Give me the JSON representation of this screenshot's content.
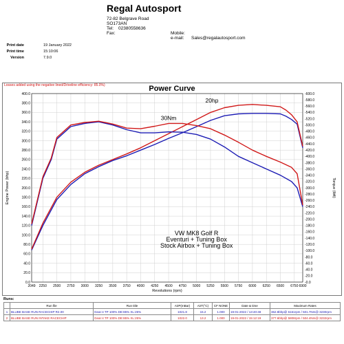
{
  "header": {
    "company": "Regal Autosport",
    "address1": "72-82 Belgrave Road",
    "address2": "SO173AN",
    "tel_label": "Tel:",
    "tel": "02380558636",
    "fax_label": "Fax:",
    "mobile_label": "Mobile:",
    "email_label": "e-mail:",
    "email": "Sales@regalautosport.com"
  },
  "print_info": {
    "date_label": "Print date",
    "date": "19 January 2022",
    "time_label": "Print time",
    "time": "15:10:06",
    "version_label": "Version",
    "version": "7.9.0"
  },
  "chart_note": "Losses added using the negative lined/Driveline efficiency: 85.0%)",
  "chart_data": {
    "type": "line",
    "title": "Power Curve",
    "xlabel": "Revolutions (rpm)",
    "ylabel": "Engine Power (bhp)",
    "y2label": "Torque (lbft)",
    "xlim": [
      2049,
      6900
    ],
    "ylim": [
      0,
      400
    ],
    "y2lim": [
      0,
      600
    ],
    "x_ticks": [
      "2049",
      "2250",
      "2500",
      "2750",
      "3000",
      "3250",
      "3500",
      "3750",
      "4000",
      "4250",
      "4500",
      "4750",
      "5000",
      "5250",
      "5500",
      "5750",
      "6000",
      "6250",
      "6500",
      "6750",
      "6900"
    ],
    "y_ticks": [
      "0.0",
      "20.0",
      "40.0",
      "60.0",
      "80.0",
      "100.0",
      "120.0",
      "140.0",
      "160.0",
      "180.0",
      "200.0",
      "220.0",
      "240.0",
      "260.0",
      "280.0",
      "300.0",
      "320.0",
      "340.0",
      "360.0",
      "380.0",
      "400.0"
    ],
    "y2_ticks": [
      "0.0",
      "20.0",
      "40.0",
      "60.0",
      "80.0",
      "100.0",
      "120.0",
      "140.0",
      "160.0",
      "180.0",
      "200.0",
      "220.0",
      "240.0",
      "260.0",
      "280.0",
      "300.0",
      "320.0",
      "340.0",
      "360.0",
      "380.0",
      "400.0",
      "420.0",
      "440.0",
      "460.0",
      "480.0",
      "500.0",
      "520.0",
      "540.0",
      "560.0",
      "580.0",
      "600.0"
    ],
    "grid": true,
    "series": [
      {
        "name": "BLUBE BASE RUN RACECHIP R2.00",
        "color": "#1c1cb4",
        "kind": "power",
        "x": [
          2049,
          2250,
          2500,
          2750,
          3000,
          3250,
          3500,
          3750,
          4000,
          4250,
          4500,
          4750,
          5000,
          5250,
          5500,
          5750,
          6000,
          6250,
          6500,
          6600,
          6700,
          6800,
          6900
        ],
        "y": [
          68,
          120,
          175,
          207,
          230,
          245,
          258,
          268,
          280,
          292,
          305,
          317,
          330,
          343,
          353,
          357,
          358,
          358,
          357,
          352,
          345,
          335,
          285
        ]
      },
      {
        "name": "BLUBE BASE RUN INTAKE RACECHIP",
        "color": "#d01818",
        "kind": "power",
        "x": [
          2049,
          2250,
          2500,
          2750,
          3000,
          3250,
          3500,
          3750,
          4000,
          4250,
          4500,
          4750,
          5000,
          5250,
          5500,
          5750,
          6000,
          6250,
          6500,
          6600,
          6700,
          6800,
          6900
        ],
        "y": [
          70,
          125,
          180,
          212,
          233,
          248,
          260,
          272,
          285,
          300,
          315,
          330,
          345,
          360,
          370,
          375,
          377,
          375,
          372,
          365,
          355,
          340,
          288
        ]
      },
      {
        "name": "BLUBE BASE RUN RACECHIP R2.00",
        "color": "#1c1cb4",
        "kind": "torque",
        "x": [
          2049,
          2250,
          2400,
          2500,
          2750,
          3000,
          3250,
          3500,
          3750,
          4000,
          4250,
          4500,
          4750,
          5000,
          5250,
          5500,
          5750,
          6000,
          6250,
          6500,
          6700,
          6800,
          6900
        ],
        "y": [
          180,
          330,
          390,
          455,
          495,
          505,
          510,
          500,
          485,
          475,
          475,
          478,
          477,
          470,
          455,
          430,
          400,
          380,
          360,
          340,
          320,
          300,
          240
        ]
      },
      {
        "name": "BLUBE BASE RUN INTAKE RACECHIP",
        "color": "#d01818",
        "kind": "torque",
        "x": [
          2049,
          2250,
          2400,
          2500,
          2750,
          3000,
          3250,
          3500,
          3750,
          4000,
          4250,
          4500,
          4750,
          5000,
          5250,
          5500,
          5750,
          6000,
          6250,
          6500,
          6700,
          6800,
          6900
        ],
        "y": [
          185,
          335,
          395,
          460,
          500,
          508,
          512,
          503,
          490,
          488,
          496,
          505,
          505,
          498,
          488,
          468,
          445,
          420,
          400,
          382,
          365,
          345,
          245
        ]
      }
    ],
    "annotations": [
      {
        "text": "30Nm",
        "x": 4500,
        "y": 344
      },
      {
        "text": "20hp",
        "x": 5275,
        "y": 381
      },
      {
        "text": "VW MK8 Golf R",
        "x": 5000,
        "y": 99
      },
      {
        "text": "Eventuri + Tuning Box",
        "x": 5000,
        "y": 86
      },
      {
        "text": "Stock Airbox + Tuning Box",
        "x": 5000,
        "y": 73
      }
    ]
  },
  "runs": {
    "label": "Runs:",
    "columns": [
      "",
      "Run file",
      "Run title",
      "AirP(mBar)",
      "AirT(°C)",
      "CF NONE",
      "Date & time",
      "Maximum Rates"
    ],
    "rows": [
      {
        "num": "1",
        "file": "BLUBE BASE RUN RACECHIP R2.00",
        "title": "Gear:4 TP 100% DE:85% XL:25%",
        "airp": "1021.8",
        "airt": "15.2",
        "cf": "1.000",
        "date": "19-01-2022 / 13:40:48",
        "max": "362.8bhp@ 6161rpm / 501.7Nm@ 3230rpm"
      },
      {
        "num": "2",
        "file": "BLUBE BASE RUN INTAKE RACECHIP",
        "title": "Gear:4 TP 100% DE:85% XL:25%",
        "airp": "1022.0",
        "airt": "13.2",
        "cf": "1.000",
        "date": "19-01-2022 / 15:12:19",
        "max": "377.6bhp@ 5808rpm / 504.4Nm@ 3232rpm"
      }
    ]
  }
}
